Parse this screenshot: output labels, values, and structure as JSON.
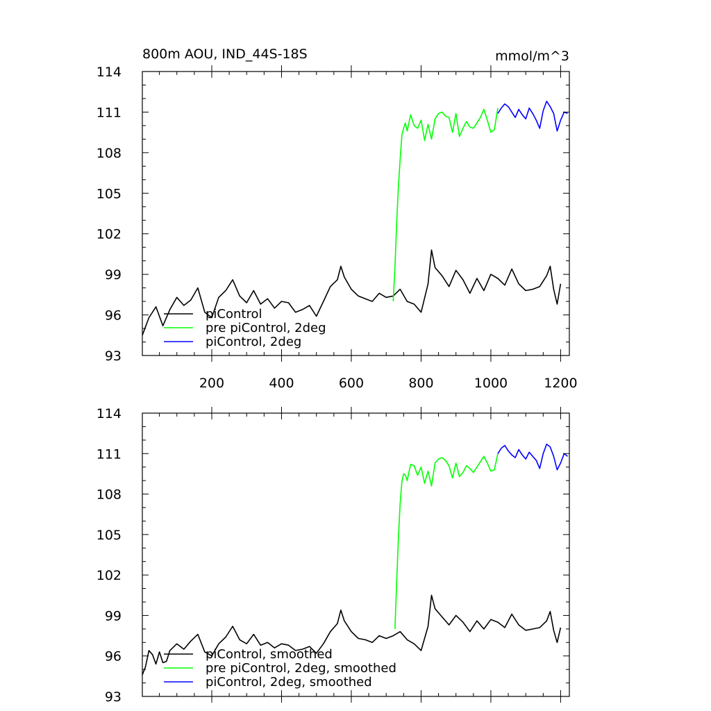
{
  "chart_data": [
    {
      "type": "line",
      "title": "800m AOU, IND_44S-18S",
      "units": "mmol/m^3",
      "xlim": [
        1,
        1225
      ],
      "ylim": [
        93,
        114
      ],
      "xticks": [
        200,
        400,
        600,
        800,
        1000,
        1200
      ],
      "yticks": [
        93,
        96,
        99,
        102,
        105,
        108,
        111,
        114
      ],
      "grid": false,
      "legend_position": "bottom-left",
      "series": [
        {
          "name": "piControl",
          "color": "#000000",
          "x": [
            1,
            20,
            40,
            60,
            80,
            100,
            120,
            140,
            160,
            180,
            200,
            220,
            240,
            260,
            280,
            300,
            320,
            340,
            360,
            380,
            400,
            420,
            440,
            460,
            480,
            500,
            520,
            540,
            560,
            570,
            580,
            600,
            620,
            640,
            660,
            680,
            700,
            720,
            740,
            760,
            780,
            800,
            820,
            830,
            840,
            860,
            880,
            900,
            920,
            940,
            960,
            980,
            1000,
            1020,
            1040,
            1060,
            1080,
            1100,
            1120,
            1140,
            1160,
            1170,
            1180,
            1190,
            1200
          ],
          "y": [
            94.5,
            95.8,
            96.6,
            95.2,
            96.4,
            97.3,
            96.7,
            97.1,
            98.0,
            96.2,
            95.8,
            97.3,
            97.8,
            98.6,
            97.4,
            96.9,
            97.8,
            96.8,
            97.2,
            96.5,
            97.0,
            96.9,
            96.2,
            96.4,
            96.7,
            95.9,
            97.0,
            98.1,
            98.6,
            99.6,
            98.8,
            97.9,
            97.4,
            97.2,
            97.0,
            97.6,
            97.3,
            97.4,
            97.9,
            97.0,
            96.8,
            96.2,
            98.3,
            100.8,
            99.5,
            98.9,
            98.1,
            99.3,
            98.6,
            97.6,
            98.7,
            97.8,
            99.0,
            98.7,
            98.2,
            99.4,
            98.3,
            97.8,
            97.9,
            98.1,
            98.9,
            99.6,
            97.9,
            96.8,
            98.3
          ]
        },
        {
          "name": "pre piControl, 2deg",
          "color": "#00ff00",
          "x": [
            720,
            725,
            730,
            735,
            740,
            745,
            750,
            755,
            760,
            770,
            780,
            790,
            800,
            810,
            820,
            830,
            840,
            850,
            860,
            870,
            880,
            890,
            900,
            910,
            920,
            930,
            940,
            950,
            960,
            970,
            980,
            990,
            1000,
            1010,
            1020
          ],
          "y": [
            97.0,
            99.5,
            102.8,
            105.5,
            107.5,
            109.3,
            109.8,
            110.2,
            109.6,
            110.8,
            110.0,
            109.8,
            110.4,
            108.9,
            110.1,
            109.0,
            110.5,
            110.9,
            111.0,
            110.7,
            110.6,
            109.5,
            110.9,
            109.2,
            109.8,
            110.3,
            109.9,
            109.8,
            110.2,
            110.6,
            111.2,
            110.4,
            109.5,
            109.7,
            111.3
          ]
        },
        {
          "name": "piControl, 2deg",
          "color": "#0000ff",
          "x": [
            1020,
            1030,
            1040,
            1050,
            1060,
            1070,
            1080,
            1090,
            1100,
            1110,
            1120,
            1130,
            1140,
            1150,
            1160,
            1170,
            1180,
            1190,
            1200,
            1210,
            1220
          ],
          "y": [
            110.9,
            111.3,
            111.6,
            111.4,
            111.0,
            110.6,
            111.2,
            110.8,
            110.5,
            111.3,
            110.9,
            110.4,
            109.8,
            111.1,
            111.8,
            111.4,
            110.9,
            109.6,
            110.4,
            111.0,
            110.9
          ]
        }
      ]
    },
    {
      "type": "line",
      "xlim": [
        1,
        1225
      ],
      "ylim": [
        93,
        114
      ],
      "xticks": [
        200,
        400,
        600,
        800,
        1000,
        1200
      ],
      "yticks": [
        93,
        96,
        99,
        102,
        105,
        108,
        111,
        114
      ],
      "grid": false,
      "legend_position": "bottom-left",
      "series": [
        {
          "name": "piControl, smoothed",
          "color": "#000000",
          "x": [
            1,
            10,
            20,
            30,
            40,
            50,
            60,
            70,
            80,
            100,
            120,
            140,
            160,
            180,
            200,
            220,
            240,
            260,
            280,
            300,
            320,
            340,
            360,
            380,
            400,
            420,
            440,
            460,
            480,
            500,
            520,
            540,
            560,
            570,
            580,
            600,
            620,
            640,
            660,
            680,
            700,
            720,
            740,
            760,
            780,
            800,
            820,
            830,
            840,
            860,
            880,
            900,
            920,
            940,
            960,
            980,
            1000,
            1020,
            1040,
            1060,
            1080,
            1100,
            1120,
            1140,
            1160,
            1170,
            1180,
            1190,
            1200
          ],
          "y": [
            94.6,
            95.2,
            96.4,
            96.1,
            95.4,
            96.3,
            95.5,
            95.6,
            96.4,
            96.9,
            96.5,
            97.1,
            97.6,
            96.3,
            96.0,
            96.9,
            97.4,
            98.2,
            97.2,
            96.9,
            97.6,
            96.8,
            97.0,
            96.6,
            96.9,
            96.8,
            96.4,
            96.5,
            96.7,
            96.2,
            96.9,
            97.8,
            98.4,
            99.4,
            98.6,
            97.8,
            97.3,
            97.2,
            97.0,
            97.5,
            97.3,
            97.5,
            97.8,
            97.2,
            96.9,
            96.4,
            98.2,
            100.5,
            99.5,
            98.9,
            98.3,
            99.0,
            98.5,
            97.8,
            98.6,
            98.0,
            98.7,
            98.5,
            98.1,
            99.1,
            98.3,
            97.9,
            98.0,
            98.1,
            98.6,
            99.3,
            97.9,
            97.0,
            98.1
          ]
        },
        {
          "name": "pre piControl, 2deg, smoothed",
          "color": "#00ff00",
          "x": [
            725,
            730,
            735,
            740,
            745,
            750,
            755,
            760,
            770,
            780,
            790,
            800,
            810,
            820,
            830,
            840,
            850,
            860,
            870,
            880,
            890,
            900,
            910,
            920,
            930,
            940,
            950,
            960,
            970,
            980,
            990,
            1000,
            1010,
            1020
          ],
          "y": [
            98.0,
            101.5,
            104.7,
            107.3,
            108.9,
            109.5,
            109.4,
            109.0,
            110.2,
            110.1,
            109.4,
            110.0,
            108.8,
            109.7,
            108.6,
            110.3,
            110.6,
            110.7,
            110.5,
            110.1,
            109.2,
            110.3,
            109.3,
            109.6,
            110.1,
            109.9,
            109.6,
            110.0,
            110.4,
            110.8,
            110.3,
            109.7,
            109.8,
            111.0
          ]
        },
        {
          "name": "piControl, 2deg, smoothed",
          "color": "#0000ff",
          "x": [
            1020,
            1030,
            1040,
            1050,
            1060,
            1070,
            1080,
            1090,
            1100,
            1110,
            1120,
            1130,
            1140,
            1150,
            1160,
            1170,
            1180,
            1190,
            1200,
            1210,
            1220
          ],
          "y": [
            111.0,
            111.4,
            111.6,
            111.2,
            110.9,
            110.7,
            111.3,
            110.9,
            110.6,
            111.1,
            110.8,
            110.5,
            109.9,
            111.0,
            111.7,
            111.5,
            110.8,
            109.8,
            110.3,
            111.0,
            110.8
          ]
        }
      ]
    }
  ]
}
